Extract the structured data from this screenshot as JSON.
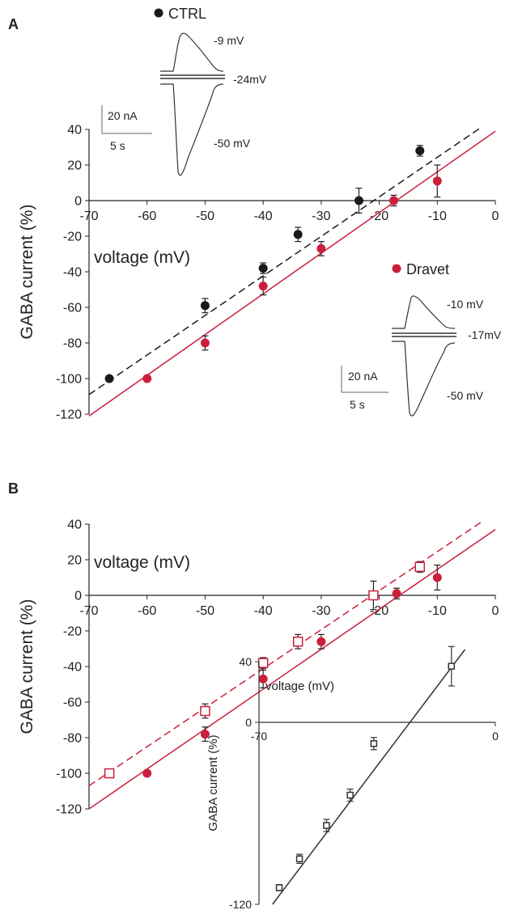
{
  "colors": {
    "ctrl": "#1a1a1a",
    "dravet": "#cc1f3a",
    "axis": "#222222",
    "inset": "#333333"
  },
  "chart_data": [
    {
      "panel": "A",
      "type": "scatter",
      "xlabel": "voltage (mV)",
      "ylabel": "GABA current (%)",
      "xlim": [
        -70,
        0
      ],
      "ylim": [
        -120,
        40
      ],
      "xticks": [
        "-70",
        "-60",
        "-50",
        "-40",
        "-30",
        "-20",
        "-10",
        "0"
      ],
      "yticks": [
        "-120",
        "-100",
        "-80",
        "-60",
        "-40",
        "-20",
        "0",
        "20",
        "40"
      ],
      "series": [
        {
          "name": "CTRL",
          "color": "#1a1a1a",
          "marker": "filled-circle",
          "line": {
            "style": "dashed",
            "from": [
              -70,
              -109
            ],
            "to": [
              -2.5,
              41
            ]
          },
          "points": [
            {
              "x": -66.5,
              "y": -100,
              "err": 0
            },
            {
              "x": -50,
              "y": -59,
              "err": 4
            },
            {
              "x": -40,
              "y": -38,
              "err": 3
            },
            {
              "x": -34,
              "y": -19,
              "err": 4
            },
            {
              "x": -23.5,
              "y": 0,
              "err": 7
            },
            {
              "x": -13,
              "y": 28,
              "err": 3
            }
          ]
        },
        {
          "name": "Dravet",
          "color": "#cc1f3a",
          "marker": "filled-circle",
          "line": {
            "style": "solid",
            "from": [
              -70,
              -121
            ],
            "to": [
              0,
              39
            ]
          },
          "points": [
            {
              "x": -60,
              "y": -100,
              "err": 0
            },
            {
              "x": -50,
              "y": -80,
              "err": 4
            },
            {
              "x": -40,
              "y": -48,
              "err": 5
            },
            {
              "x": -30,
              "y": -27,
              "err": 4
            },
            {
              "x": -17.5,
              "y": 0,
              "err": 3
            },
            {
              "x": -10,
              "y": 11,
              "err": 9
            }
          ]
        }
      ],
      "traces": [
        {
          "group": "CTRL",
          "labels": [
            "-9 mV",
            "-24mV",
            "-50 mV"
          ],
          "scale_current": "20 nA",
          "scale_time": "5 s"
        },
        {
          "group": "Dravet",
          "labels": [
            "-10 mV",
            "-17mV",
            "-50 mV"
          ],
          "scale_current": "20 nA",
          "scale_time": "5 s"
        }
      ]
    },
    {
      "panel": "B",
      "type": "scatter",
      "xlabel": "voltage (mV)",
      "ylabel": "GABA current (%)",
      "xlim": [
        -70,
        0
      ],
      "ylim": [
        -120,
        40
      ],
      "xticks": [
        "-70",
        "-60",
        "-50",
        "-40",
        "-30",
        "-20",
        "-10",
        "0"
      ],
      "yticks": [
        "-120",
        "-100",
        "-80",
        "-60",
        "-40",
        "-20",
        "0",
        "20",
        "40"
      ],
      "series": [
        {
          "color": "#cc1f3a",
          "marker": "open-square",
          "line": {
            "style": "dashed",
            "from": [
              -70,
              -107
            ],
            "to": [
              -2.5,
              41
            ]
          },
          "points": [
            {
              "x": -66.5,
              "y": -100,
              "err": 0
            },
            {
              "x": -50,
              "y": -65,
              "err": 4
            },
            {
              "x": -40,
              "y": -38,
              "err": 3
            },
            {
              "x": -34,
              "y": -26,
              "err": 4
            },
            {
              "x": -21,
              "y": 0,
              "err": 8
            },
            {
              "x": -13,
              "y": 16,
              "err": 3
            }
          ]
        },
        {
          "color": "#cc1f3a",
          "marker": "filled-circle",
          "line": {
            "style": "solid",
            "from": [
              -70,
              -120
            ],
            "to": [
              0,
              37
            ]
          },
          "points": [
            {
              "x": -60,
              "y": -100,
              "err": 0
            },
            {
              "x": -50,
              "y": -78,
              "err": 4
            },
            {
              "x": -40,
              "y": -47,
              "err": 5
            },
            {
              "x": -30,
              "y": -26,
              "err": 4
            },
            {
              "x": -17,
              "y": 1,
              "err": 3
            },
            {
              "x": -10,
              "y": 10,
              "err": 7
            }
          ]
        }
      ],
      "inset": {
        "type": "scatter",
        "xlabel": "voltage (mV)",
        "ylabel": "GABA current (%)",
        "xlim": [
          -70,
          0
        ],
        "ylim": [
          -120,
          40
        ],
        "xticks": [
          "-70",
          "0"
        ],
        "yticks": [
          "-120",
          "0",
          "40"
        ],
        "series": [
          {
            "color": "#333333",
            "marker": "open-square",
            "line": {
              "style": "solid",
              "from": [
                -66,
                -120
              ],
              "to": [
                -9,
                48
              ]
            },
            "points": [
              {
                "x": -64,
                "y": -109,
                "err": 2
              },
              {
                "x": -58,
                "y": -90,
                "err": 3
              },
              {
                "x": -50,
                "y": -68,
                "err": 4
              },
              {
                "x": -43,
                "y": -48,
                "err": 4
              },
              {
                "x": -36,
                "y": -14,
                "err": 4
              },
              {
                "x": -13,
                "y": 37,
                "err": 13
              }
            ]
          }
        ]
      }
    }
  ]
}
